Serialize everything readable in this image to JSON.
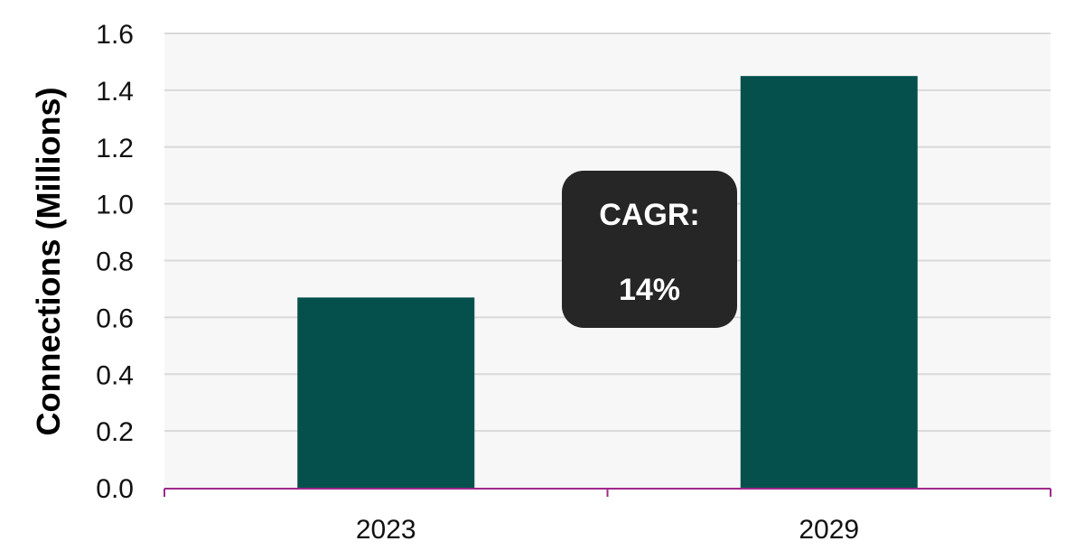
{
  "chart_data": {
    "type": "bar",
    "categories": [
      "2023",
      "2029"
    ],
    "series": [
      {
        "values": [
          0.67,
          1.45
        ],
        "color": "#05504c"
      }
    ],
    "ylabel": "Connections (Millions)",
    "xlabel": "",
    "ylim": [
      0,
      1.6
    ],
    "yticks": [
      "0.0",
      "0.2",
      "0.4",
      "0.6",
      "0.8",
      "1.0",
      "1.2",
      "1.4",
      "1.6"
    ],
    "grid": true,
    "legend": "none",
    "annotation": {
      "label": "CAGR:",
      "value": "14%"
    },
    "colors": {
      "plot_background": "#f7f7f7",
      "gridline": "#d9d9d9",
      "x_axis": "#a0288c",
      "annotation_background": "#262626"
    }
  }
}
